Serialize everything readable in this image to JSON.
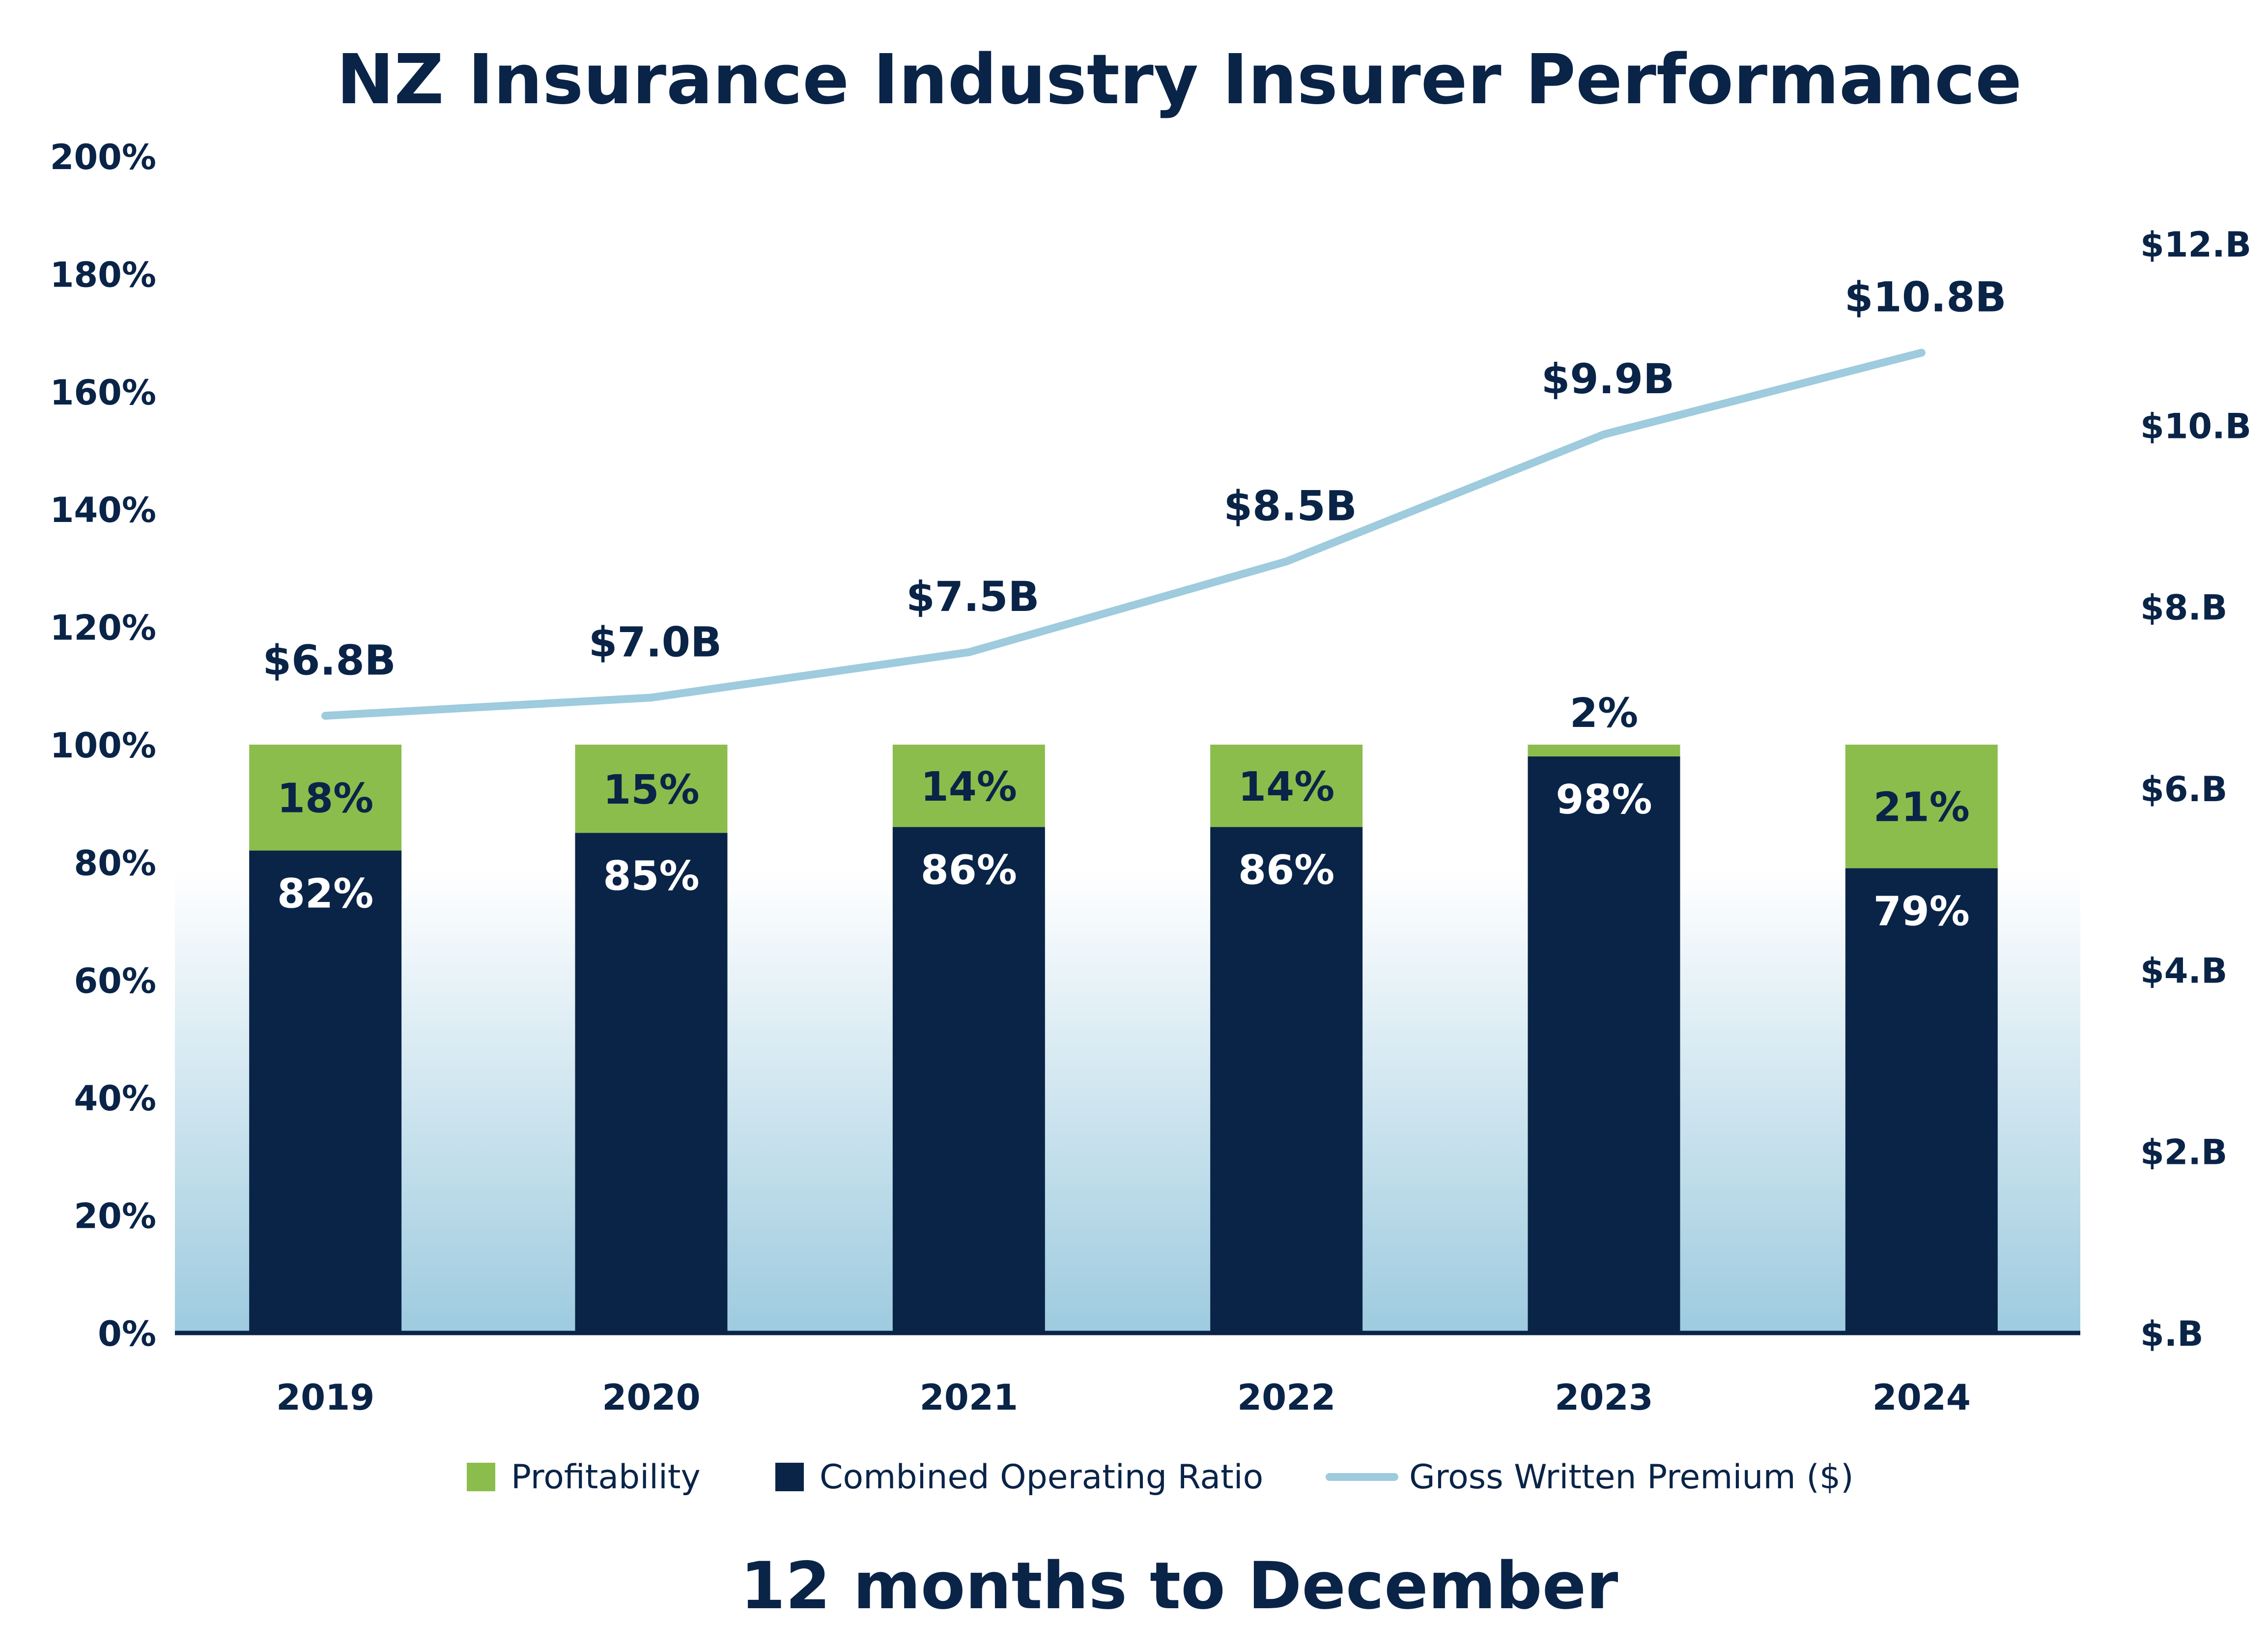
{
  "colors": {
    "navy": "#0a2448",
    "green": "#8bbd4c",
    "line": "#9ecbdd",
    "gradient_top": "#ffffff",
    "gradient_bottom": "#9ecbdf",
    "axis": "#0a2448"
  },
  "chart_data": {
    "type": "bar",
    "title": "NZ Insurance Industry Insurer Performance",
    "xlabel": "12 months to December",
    "categories": [
      "2019",
      "2020",
      "2021",
      "2022",
      "2023",
      "2024"
    ],
    "ylim": [
      0,
      200
    ],
    "y_ticks": [
      "0%",
      "20%",
      "40%",
      "60%",
      "80%",
      "100%",
      "120%",
      "140%",
      "160%",
      "180%",
      "200%"
    ],
    "y2lim": [
      0,
      12
    ],
    "y2_ticks": [
      "$.B",
      "$2.B",
      "$4.B",
      "$6.B",
      "$8.B",
      "$10.B",
      "$12.B"
    ],
    "stacked": true,
    "series": [
      {
        "name": "Combined Operating Ratio",
        "kind": "bar",
        "values": [
          82,
          85,
          86,
          86,
          98,
          79
        ],
        "labels": [
          "82%",
          "85%",
          "86%",
          "86%",
          "98%",
          "79%"
        ]
      },
      {
        "name": "Profitability",
        "kind": "bar",
        "values": [
          18,
          15,
          14,
          14,
          2,
          21
        ],
        "labels": [
          "18%",
          "15%",
          "14%",
          "14%",
          "2%",
          "21%"
        ]
      },
      {
        "name": "Gross Written Premium ($)",
        "kind": "line",
        "axis": "right",
        "values": [
          6.8,
          7.0,
          7.5,
          8.5,
          9.9,
          10.8
        ],
        "labels": [
          "$6.8B",
          "$7.0B",
          "$7.5B",
          "$8.5B",
          "$9.9B",
          "$10.8B"
        ]
      }
    ],
    "legend": [
      "Profitability",
      "Combined Operating Ratio",
      "Gross Written Premium ($)"
    ],
    "legend_position": "bottom"
  }
}
